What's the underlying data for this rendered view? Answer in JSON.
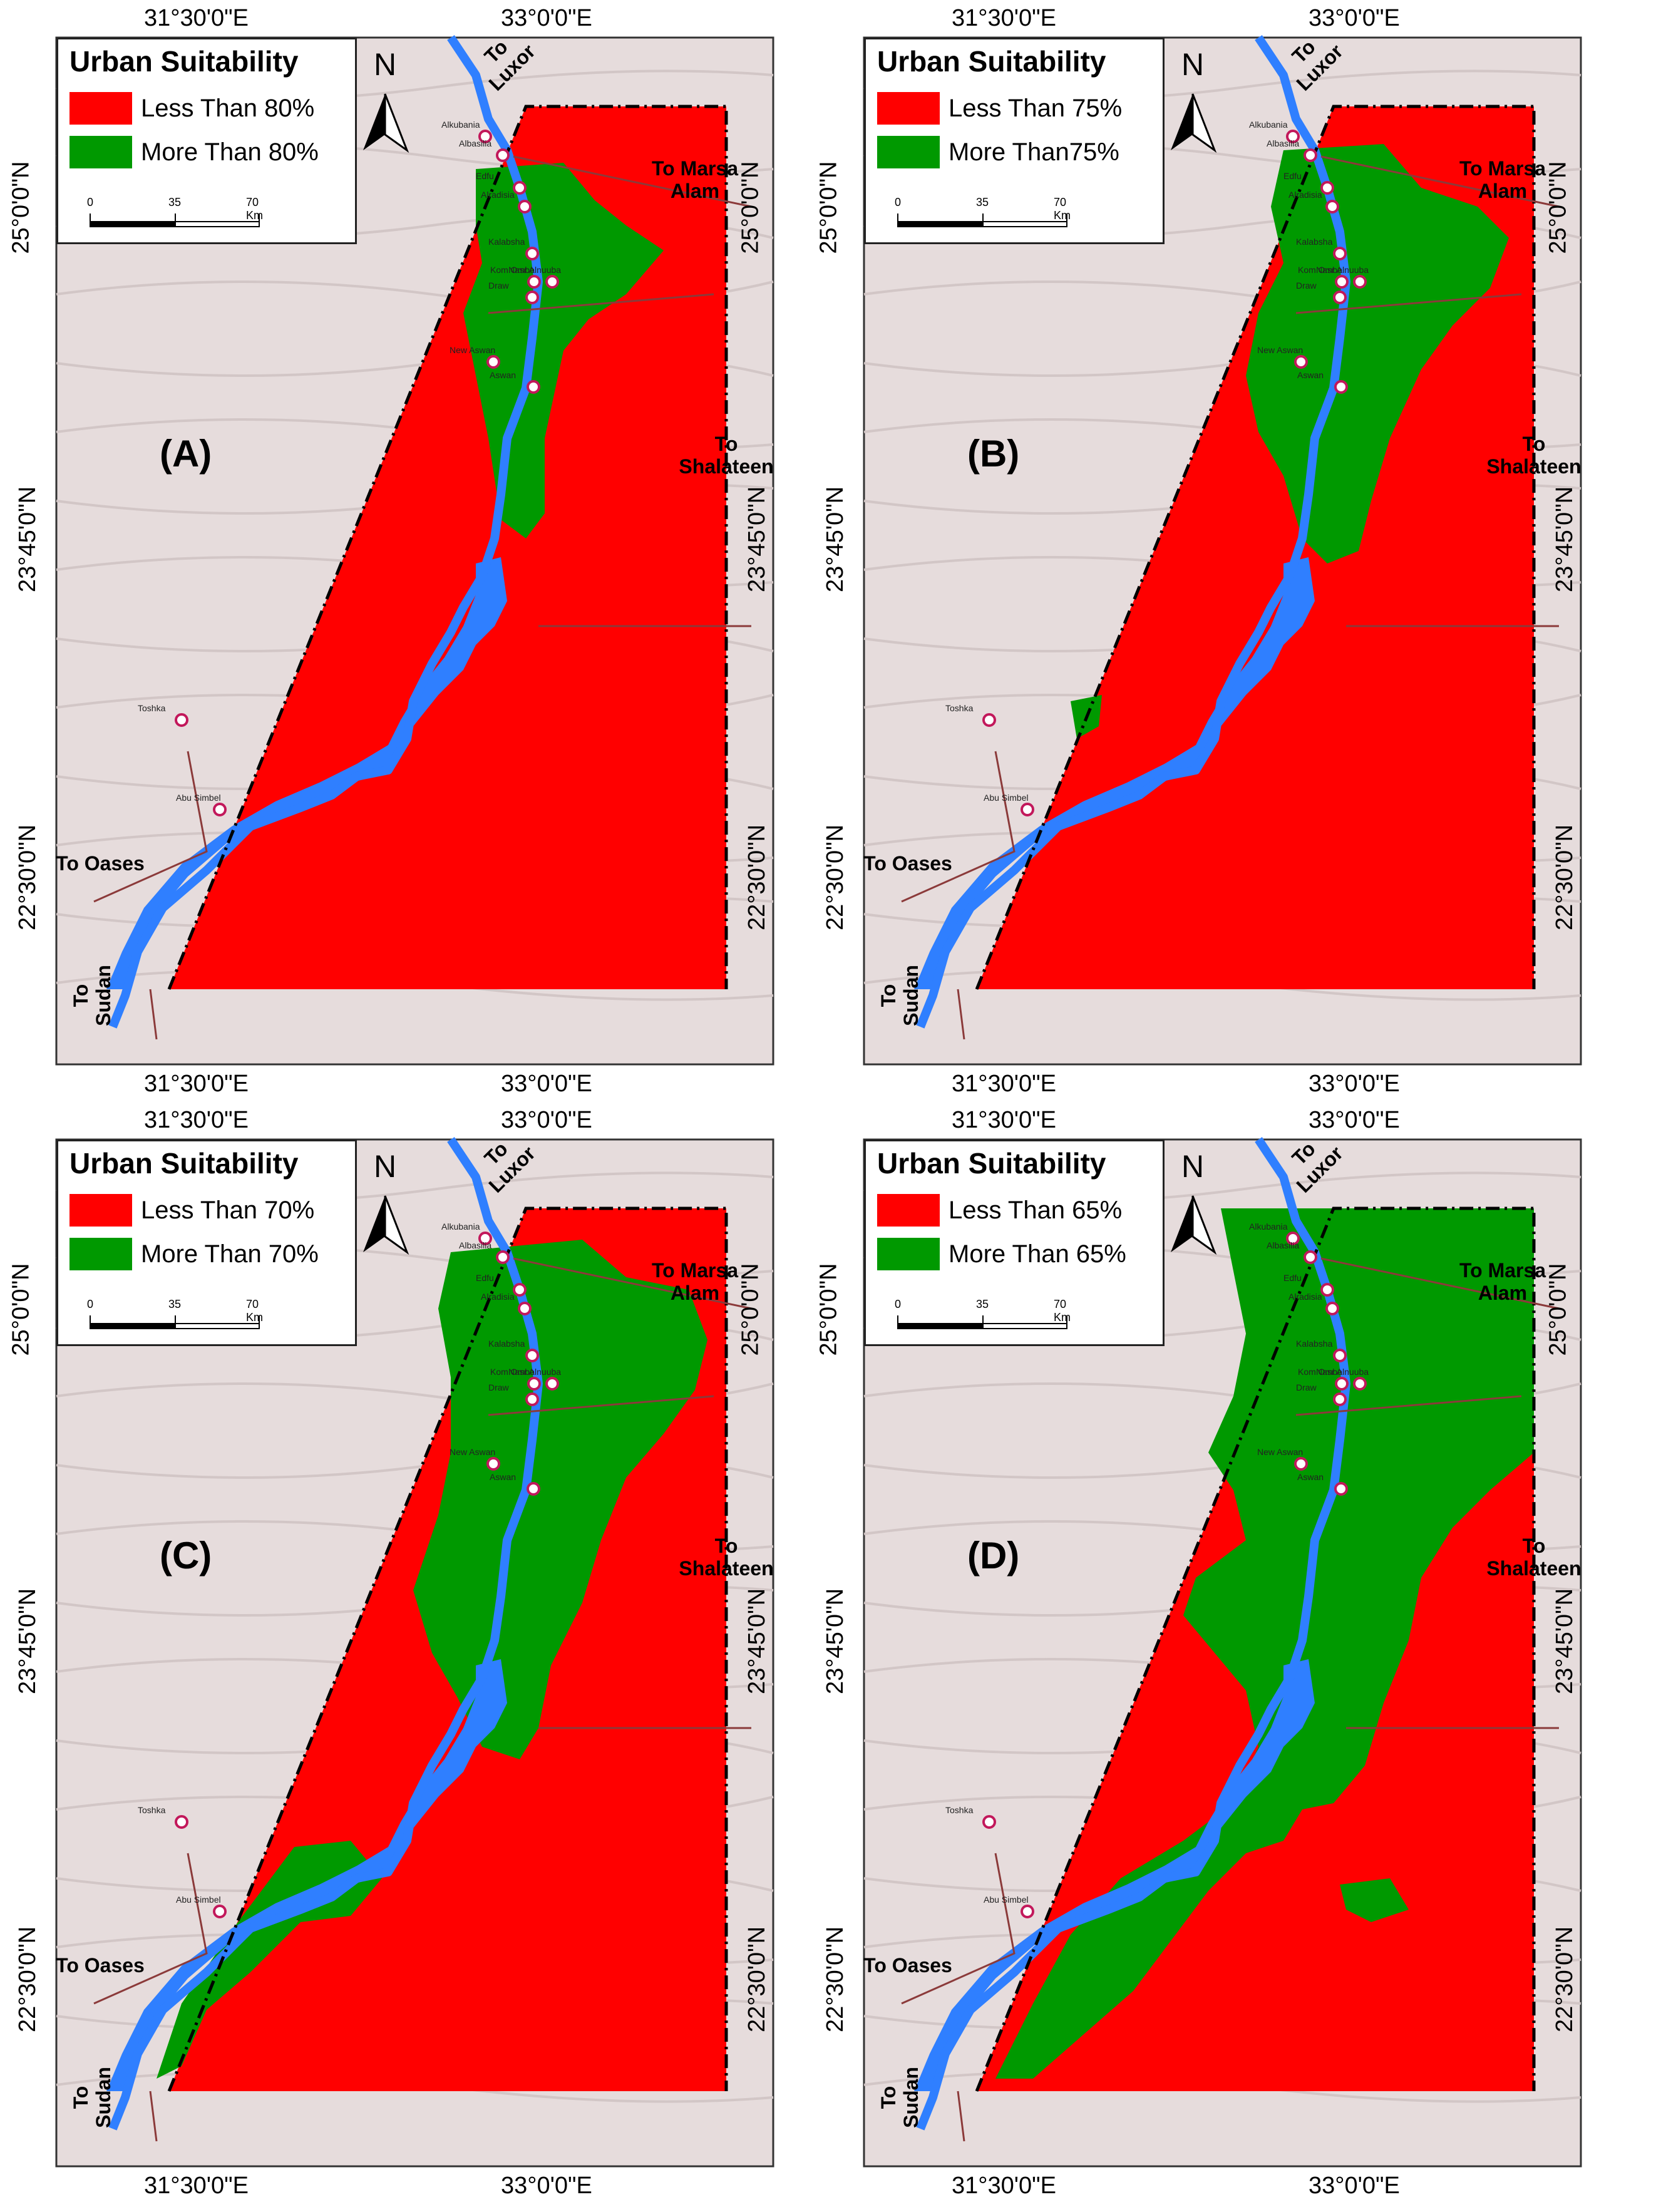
{
  "coords": {
    "lon_left": "31°30'0\"E",
    "lon_right": "33°0'0\"E",
    "lat_top": "25°0'0\"N",
    "lat_mid": "23°45'0\"N",
    "lat_bottom": "22°30'0\"N"
  },
  "scale": {
    "t0": "0",
    "t1": "35",
    "t2": "70 Km"
  },
  "north_label": "N",
  "directions": {
    "luxor": "To\nLuxor",
    "marsa": "To Marsa\nAlam",
    "shalateen": "To\nShalateen",
    "oases": "To Oases",
    "sudan": "To\nSudan"
  },
  "cities": [
    "Alkubania",
    "Albasilia",
    "Edfu",
    "Alradisia",
    "Kalabsha",
    "Kom Ombo",
    "Nasr Alnuuba",
    "Draw",
    "New Aswan",
    "Aswan",
    "Toshka",
    "Abu Simbel"
  ],
  "colors": {
    "less": "#ff0000",
    "more": "#009900",
    "water": "#2f7fff",
    "basemap": "#e6dcdc"
  },
  "panels": [
    {
      "letter": "(A)",
      "legend_title": "Urban Suitability",
      "less_label": "Less Than 80%",
      "more_label": "More Than 80%"
    },
    {
      "letter": "(B)",
      "legend_title": "Urban Suitability",
      "less_label": "Less Than 75%",
      "more_label": "More Than75%"
    },
    {
      "letter": "(C)",
      "legend_title": "Urban Suitability",
      "less_label": "Less Than 70%",
      "more_label": "More Than 70%"
    },
    {
      "letter": "(D)",
      "legend_title": "Urban Suitability",
      "less_label": "Less Than 65%",
      "more_label": "More Than 65%"
    }
  ]
}
